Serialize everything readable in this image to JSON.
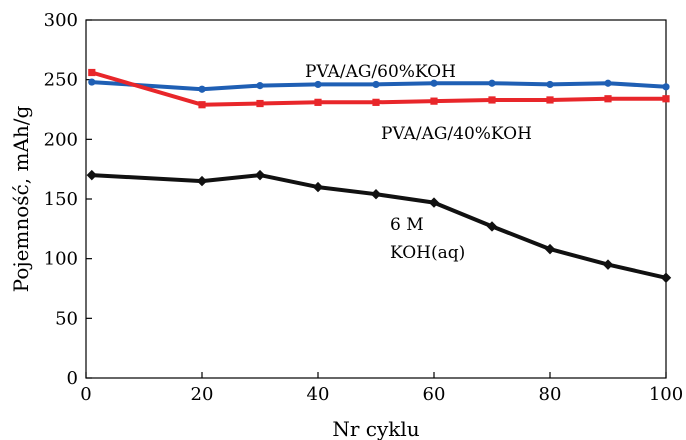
{
  "chart_data": {
    "type": "line",
    "xlabel": "Nr cyklu",
    "ylabel": "Pojemność, mAh/g",
    "xlim": [
      0,
      100
    ],
    "ylim": [
      0,
      300
    ],
    "xticks": [
      0,
      20,
      40,
      60,
      80,
      100
    ],
    "yticks": [
      0,
      50,
      100,
      150,
      200,
      250,
      300
    ],
    "grid": false,
    "series": [
      {
        "name": "PVA/AG/60%KOH",
        "color": "#1f5fb4",
        "marker": "circle",
        "x": [
          1,
          20,
          30,
          40,
          50,
          60,
          70,
          80,
          90,
          100
        ],
        "y": [
          248,
          242,
          245,
          246,
          246,
          247,
          247,
          246,
          247,
          244
        ]
      },
      {
        "name": "PVA/AG/40%KOH",
        "color": "#e8262a",
        "marker": "square",
        "x": [
          1,
          20,
          30,
          40,
          50,
          60,
          70,
          80,
          90,
          100
        ],
        "y": [
          256,
          229,
          230,
          231,
          231,
          232,
          233,
          233,
          234,
          234
        ]
      },
      {
        "name": "6 M KOH(aq)",
        "color": "#111111",
        "marker": "diamond",
        "x": [
          1,
          20,
          30,
          40,
          50,
          60,
          70,
          80,
          90,
          100
        ],
        "y": [
          170,
          165,
          170,
          160,
          154,
          147,
          127,
          108,
          95,
          84
        ]
      }
    ],
    "annotations": [
      {
        "text": "PVA/AG/60%KOH",
        "series": 0
      },
      {
        "text": "PVA/AG/40%KOH",
        "series": 1
      },
      {
        "text": "6 M",
        "series": 2
      },
      {
        "text": "KOH(aq)",
        "series": 2
      }
    ]
  }
}
